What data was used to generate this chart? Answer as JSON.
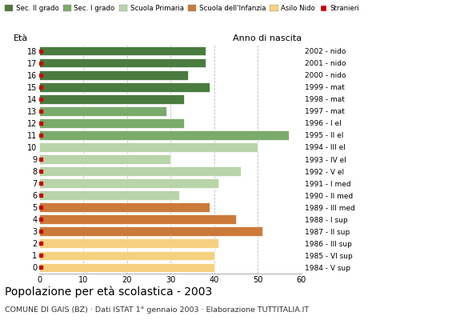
{
  "ages": [
    0,
    1,
    2,
    3,
    4,
    5,
    6,
    7,
    8,
    9,
    10,
    11,
    12,
    13,
    14,
    15,
    16,
    17,
    18
  ],
  "birth_years": [
    "2002 - nido",
    "2001 - nido",
    "2000 - nido",
    "1999 - mat",
    "1998 - mat",
    "1997 - mat",
    "1996 - I el",
    "1995 - II el",
    "1994 - III el",
    "1993 - IV el",
    "1992 - V el",
    "1991 - I med",
    "1990 - II med",
    "1989 - III med",
    "1988 - I sup",
    "1987 - II sup",
    "1986 - III sup",
    "1985 - VI sup",
    "1984 - V sup"
  ],
  "values": [
    40,
    40,
    41,
    51,
    45,
    39,
    32,
    41,
    46,
    30,
    50,
    57,
    33,
    29,
    33,
    39,
    34,
    38,
    38
  ],
  "stranieri": [
    1,
    1,
    1,
    1,
    1,
    1,
    1,
    1,
    1,
    1,
    0,
    1,
    1,
    1,
    1,
    1,
    1,
    1,
    1
  ],
  "bar_colors": [
    "#f5d080",
    "#f5d080",
    "#f5d080",
    "#cc7a3a",
    "#cc7a3a",
    "#cc7a3a",
    "#b8d4a8",
    "#b8d4a8",
    "#b8d4a8",
    "#b8d4a8",
    "#b8d4a8",
    "#7aab6a",
    "#7aab6a",
    "#7aab6a",
    "#4a7c3f",
    "#4a7c3f",
    "#4a7c3f",
    "#4a7c3f",
    "#4a7c3f"
  ],
  "legend_labels": [
    "Sec. II grado",
    "Sec. I grado",
    "Scuola Primaria",
    "Scuola dell'Infanzia",
    "Asilo Nido",
    "Stranieri"
  ],
  "legend_colors": [
    "#4a7c3f",
    "#7aab6a",
    "#b8d4a8",
    "#cc7a3a",
    "#f5d080",
    "#cc0000"
  ],
  "title": "Popolazione per età scolastica - 2003",
  "subtitle": "COMUNE DI GAIS (BZ) · Dati ISTAT 1° gennaio 2003 · Elaborazione TUTTITALIA.IT",
  "ylabel_left": "Età",
  "ylabel_right": "Anno di nascita",
  "xlim": [
    0,
    60
  ],
  "xticks": [
    0,
    10,
    20,
    30,
    40,
    50,
    60
  ],
  "stranieri_color": "#cc0000",
  "background_color": "#ffffff"
}
